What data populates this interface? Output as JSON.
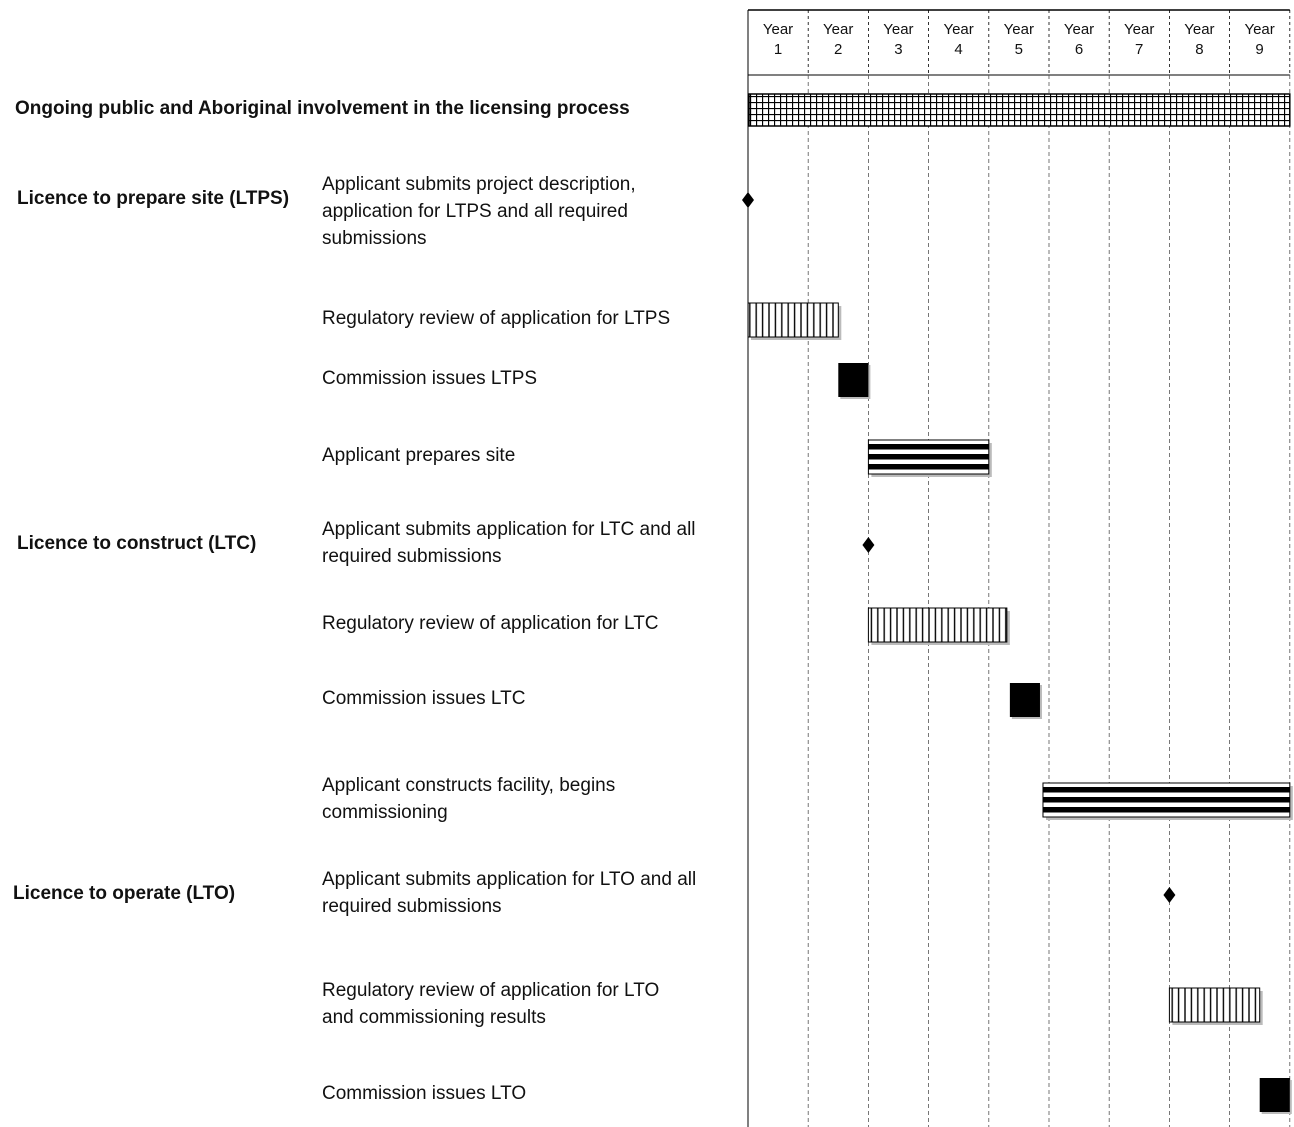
{
  "chart_data": {
    "type": "gantt",
    "years": [
      {
        "label": "Year",
        "number": "1"
      },
      {
        "label": "Year",
        "number": "2"
      },
      {
        "label": "Year",
        "number": "3"
      },
      {
        "label": "Year",
        "number": "4"
      },
      {
        "label": "Year",
        "number": "5"
      },
      {
        "label": "Year",
        "number": "6"
      },
      {
        "label": "Year",
        "number": "7"
      },
      {
        "label": "Year",
        "number": "8"
      },
      {
        "label": "Year",
        "number": "9"
      }
    ],
    "x_range_years": [
      0,
      9
    ],
    "tasks": [
      {
        "section": "Ongoing public and Aboriginal involvement in the licensing process",
        "lines": [],
        "kind": "ongoing",
        "start": 0,
        "end": 9
      },
      {
        "section": "Licence to prepare site (LTPS)",
        "lines": [
          "Applicant submits project description,",
          "application for  LTPS and all required",
          "submissions"
        ],
        "kind": "milestone",
        "start": 0,
        "end": 0
      },
      {
        "section": "",
        "lines": [
          "Regulatory review of application for LTPS"
        ],
        "kind": "review",
        "start": 0,
        "end": 1.5
      },
      {
        "section": "",
        "lines": [
          "Commission issues LTPS"
        ],
        "kind": "issue",
        "start": 1.5,
        "end": 2
      },
      {
        "section": "",
        "lines": [
          "Applicant prepares site"
        ],
        "kind": "work",
        "start": 2,
        "end": 4
      },
      {
        "section": "Licence to construct (LTC)",
        "lines": [
          "Applicant submits application for LTC and all",
          "required submissions"
        ],
        "kind": "milestone",
        "start": 2,
        "end": 2
      },
      {
        "section": "",
        "lines": [
          "Regulatory review of application for LTC"
        ],
        "kind": "review",
        "start": 2,
        "end": 4.3
      },
      {
        "section": "",
        "lines": [
          "Commission issues LTC"
        ],
        "kind": "issue",
        "start": 4.35,
        "end": 4.85
      },
      {
        "section": "",
        "lines": [
          "Applicant constructs facility, begins",
          "commissioning"
        ],
        "kind": "work",
        "start": 4.9,
        "end": 9
      },
      {
        "section": "Licence to operate (LTO)",
        "lines": [
          "Applicant submits application for LTO and all",
          "required submissions"
        ],
        "kind": "milestone",
        "start": 7,
        "end": 7
      },
      {
        "section": "",
        "lines": [
          "Regulatory review of application for LTO",
          "and commissioning results"
        ],
        "kind": "review",
        "start": 7,
        "end": 8.5
      },
      {
        "section": "",
        "lines": [
          "Commission issues LTO"
        ],
        "kind": "issue",
        "start": 8.5,
        "end": 9
      }
    ]
  }
}
